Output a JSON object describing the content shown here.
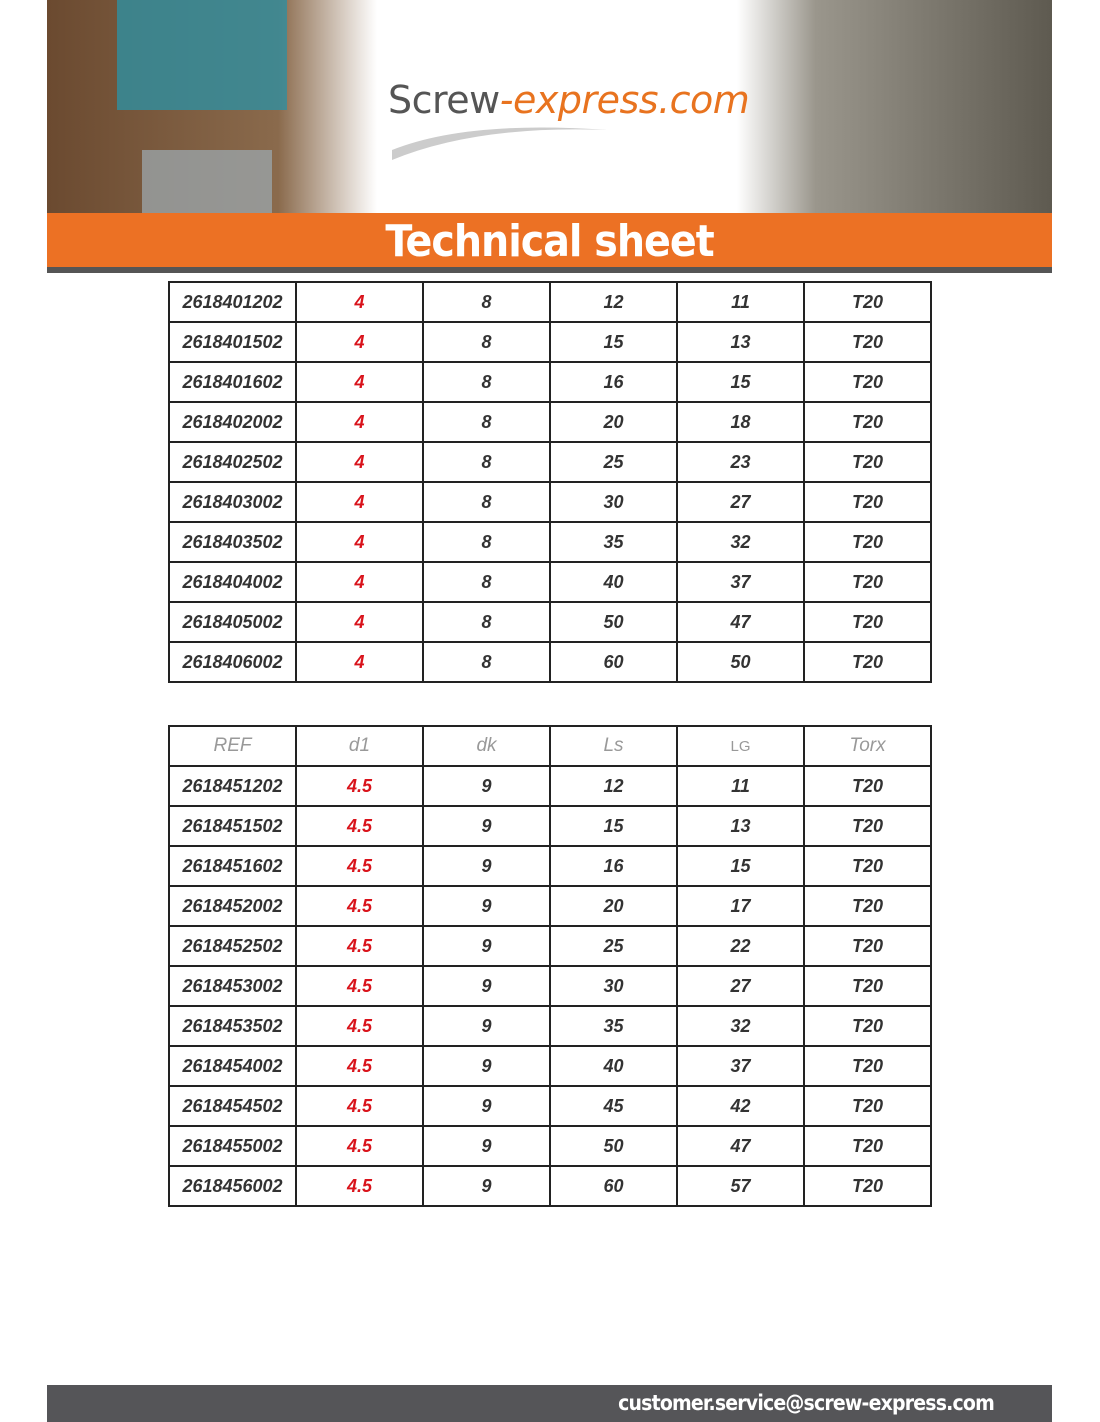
{
  "header": {
    "logo_main": "Screw",
    "logo_accent": "-express.com",
    "title": "Technical sheet"
  },
  "tables": [
    {
      "columns": null,
      "rows": [
        [
          "2618401202",
          "4",
          "8",
          "12",
          "11",
          "T20"
        ],
        [
          "2618401502",
          "4",
          "8",
          "15",
          "13",
          "T20"
        ],
        [
          "2618401602",
          "4",
          "8",
          "16",
          "15",
          "T20"
        ],
        [
          "2618402002",
          "4",
          "8",
          "20",
          "18",
          "T20"
        ],
        [
          "2618402502",
          "4",
          "8",
          "25",
          "23",
          "T20"
        ],
        [
          "2618403002",
          "4",
          "8",
          "30",
          "27",
          "T20"
        ],
        [
          "2618403502",
          "4",
          "8",
          "35",
          "32",
          "T20"
        ],
        [
          "2618404002",
          "4",
          "8",
          "40",
          "37",
          "T20"
        ],
        [
          "2618405002",
          "4",
          "8",
          "50",
          "47",
          "T20"
        ],
        [
          "2618406002",
          "4",
          "8",
          "60",
          "50",
          "T20"
        ]
      ]
    },
    {
      "columns": [
        "REF",
        "d1",
        "dk",
        "Ls",
        "LG",
        "Torx"
      ],
      "rows": [
        [
          "2618451202",
          "4.5",
          "9",
          "12",
          "11",
          "T20"
        ],
        [
          "2618451502",
          "4.5",
          "9",
          "15",
          "13",
          "T20"
        ],
        [
          "2618451602",
          "4.5",
          "9",
          "16",
          "15",
          "T20"
        ],
        [
          "2618452002",
          "4.5",
          "9",
          "20",
          "17",
          "T20"
        ],
        [
          "2618452502",
          "4.5",
          "9",
          "25",
          "22",
          "T20"
        ],
        [
          "2618453002",
          "4.5",
          "9",
          "30",
          "27",
          "T20"
        ],
        [
          "2618453502",
          "4.5",
          "9",
          "35",
          "32",
          "T20"
        ],
        [
          "2618454002",
          "4.5",
          "9",
          "40",
          "37",
          "T20"
        ],
        [
          "2618454502",
          "4.5",
          "9",
          "45",
          "42",
          "T20"
        ],
        [
          "2618455002",
          "4.5",
          "9",
          "50",
          "47",
          "T20"
        ],
        [
          "2618456002",
          "4.5",
          "9",
          "60",
          "57",
          "T20"
        ]
      ]
    }
  ],
  "footer": {
    "email": "customer.service@screw-express.com"
  }
}
